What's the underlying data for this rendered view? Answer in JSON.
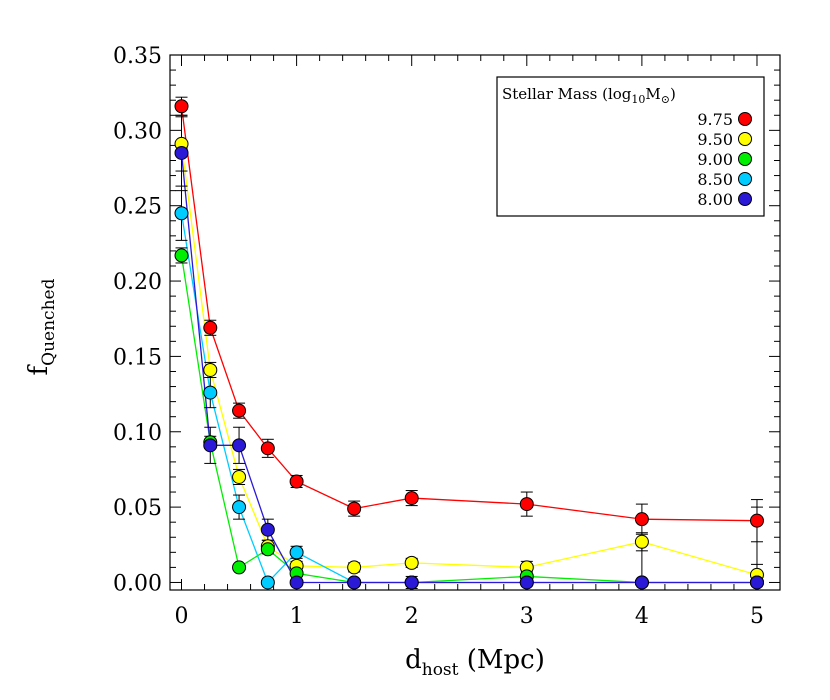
{
  "chart_data": {
    "type": "line",
    "title": "",
    "xlabel": {
      "main": "d",
      "sub": "host",
      "suffix": " (Mpc)"
    },
    "ylabel": {
      "main": "f",
      "sub": "Quenched"
    },
    "xlim": [
      -0.1,
      5.2
    ],
    "ylim": [
      -0.005,
      0.35
    ],
    "xticks": [
      0,
      1,
      2,
      3,
      4,
      5
    ],
    "xtick_labels": [
      "0",
      "1",
      "2",
      "3",
      "4",
      "5"
    ],
    "yticks": [
      0.0,
      0.05,
      0.1,
      0.15,
      0.2,
      0.25,
      0.3,
      0.35
    ],
    "ytick_labels": [
      "0.00",
      "0.05",
      "0.10",
      "0.15",
      "0.20",
      "0.25",
      "0.30",
      "0.35"
    ],
    "grid": false,
    "legend": {
      "placement": "top-right",
      "title_main": "Stellar Mass (log",
      "title_sub1": "10",
      "title_mid": "M",
      "title_sub2": "⊙",
      "title_end": ")"
    },
    "series": [
      {
        "name": "9.75",
        "color": "#ff0000",
        "x": [
          0,
          0.25,
          0.5,
          0.75,
          1,
          1.5,
          2,
          3,
          4,
          5
        ],
        "y": [
          0.316,
          0.169,
          0.114,
          0.089,
          0.067,
          0.049,
          0.056,
          0.052,
          0.042,
          0.041
        ],
        "err": [
          0.006,
          0.005,
          0.005,
          0.006,
          0.004,
          0.005,
          0.005,
          0.008,
          0.01,
          0.014
        ]
      },
      {
        "name": "9.50",
        "color": "#ffff00",
        "x": [
          0,
          0.25,
          0.5,
          0.75,
          1,
          1.5,
          2,
          3,
          4,
          5
        ],
        "y": [
          0.291,
          0.141,
          0.07,
          0.024,
          0.011,
          0.01,
          0.013,
          0.01,
          0.027,
          0.005
        ],
        "err": [
          0.018,
          0.005,
          0.005,
          0.004,
          0.003,
          0.003,
          0.003,
          0.004,
          0.006,
          0.007
        ]
      },
      {
        "name": "9.00",
        "color": "#00ee00",
        "x": [
          0,
          0.25,
          0.5,
          0.75,
          1,
          1.5,
          2,
          3,
          4,
          5
        ],
        "y": [
          0.217,
          0.093,
          0.01,
          0.022,
          0.006,
          0.0,
          0.0,
          0.004,
          0.0,
          0.0
        ],
        "err": [
          0.005,
          0.004,
          0.002,
          0.003,
          0.002,
          0.0,
          0.0,
          0.003,
          0.0,
          0.0
        ]
      },
      {
        "name": "8.50",
        "color": "#00ccff",
        "x": [
          0,
          0.25,
          0.5,
          0.75,
          1,
          1.5,
          2,
          3,
          4,
          5
        ],
        "y": [
          0.245,
          0.126,
          0.05,
          0.0,
          0.02,
          0.0,
          0.0,
          0.0,
          0.0,
          0.0
        ],
        "err": [
          0.018,
          0.01,
          0.008,
          0.0,
          0.004,
          0.0,
          0.0,
          0.0,
          0.0,
          0.0
        ]
      },
      {
        "name": "8.00",
        "color": "#2a1ad8",
        "x": [
          0,
          0.25,
          0.5,
          0.75,
          1,
          1.5,
          2,
          3,
          4,
          5
        ],
        "y": [
          0.285,
          0.091,
          0.091,
          0.035,
          0.0,
          0.0,
          0.0,
          0.0,
          0.0,
          0.0
        ],
        "err": [
          0.025,
          0.012,
          0.012,
          0.007,
          0.0,
          0.0,
          0.004,
          0.0,
          0.025,
          0.05
        ]
      }
    ]
  }
}
